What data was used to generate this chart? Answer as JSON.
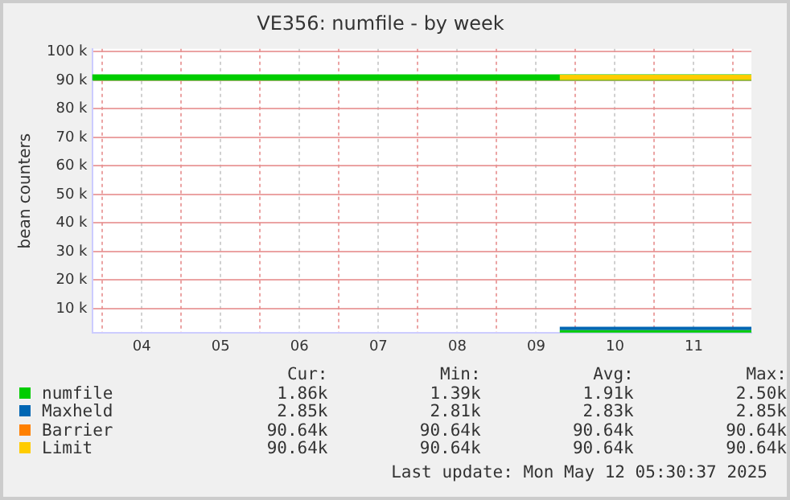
{
  "chart_data": {
    "type": "line",
    "title": "VE356: numfile - by week",
    "ylabel": "bean counters",
    "xlim": [
      3.87,
      12.23
    ],
    "ylim": [
      1400,
      101000
    ],
    "xticks": [
      {
        "value": 4,
        "label": null
      },
      {
        "value": 4.5,
        "label": "04"
      },
      {
        "value": 5,
        "label": null
      },
      {
        "value": 5.5,
        "label": "05"
      },
      {
        "value": 6,
        "label": null
      },
      {
        "value": 6.5,
        "label": "06"
      },
      {
        "value": 7,
        "label": null
      },
      {
        "value": 7.5,
        "label": "07"
      },
      {
        "value": 8,
        "label": null
      },
      {
        "value": 8.5,
        "label": "08"
      },
      {
        "value": 9,
        "label": null
      },
      {
        "value": 9.5,
        "label": "09"
      },
      {
        "value": 10,
        "label": null
      },
      {
        "value": 10.5,
        "label": "10"
      },
      {
        "value": 11,
        "label": null
      },
      {
        "value": 11.5,
        "label": "11"
      },
      {
        "value": 12,
        "label": null
      }
    ],
    "yticks": [
      {
        "value": 10000,
        "label": "10 k"
      },
      {
        "value": 20000,
        "label": "20 k"
      },
      {
        "value": 30000,
        "label": "30 k"
      },
      {
        "value": 40000,
        "label": "40 k"
      },
      {
        "value": 50000,
        "label": "50 k"
      },
      {
        "value": 60000,
        "label": "60 k"
      },
      {
        "value": 70000,
        "label": "70 k"
      },
      {
        "value": 80000,
        "label": "80 k"
      },
      {
        "value": 90000,
        "label": "90 k"
      },
      {
        "value": 100000,
        "label": "100 k"
      }
    ],
    "grid": true,
    "legend": "bottom",
    "marker": "none",
    "line_style": "solid",
    "series": [
      {
        "name": "numfile",
        "color": "#00cc00",
        "x": [
          9.8,
          12.23
        ],
        "values": [
          2000,
          2000
        ]
      },
      {
        "name": "Maxheld",
        "color": "#0066b3",
        "x": [
          9.8,
          12.23
        ],
        "values": [
          3000,
          3000
        ]
      },
      {
        "name": "Barrier",
        "color": "#ff8000"
      },
      {
        "name": "Limit",
        "color": "#ffcc00",
        "x": [
          9.8,
          12.23
        ],
        "values": [
          91000,
          91000
        ]
      },
      {
        "color": "#00cc00",
        "x": [
          3.87,
          12.23
        ],
        "values": [
          91000,
          91000
        ]
      }
    ],
    "annotations": [
      "Cur:",
      "Min:",
      "Avg:",
      "Max:",
      "1.86k",
      "1.39k",
      "1.91k",
      "2.50k",
      "2.85k",
      "2.81k",
      "2.83k",
      "2.85k",
      "90.64k",
      "90.64k",
      "90.64k",
      "90.64k",
      "90.64k",
      "90.64k",
      "90.64k",
      "90.64k",
      "Last update: Mon May 12 05:30:37 2025"
    ]
  }
}
